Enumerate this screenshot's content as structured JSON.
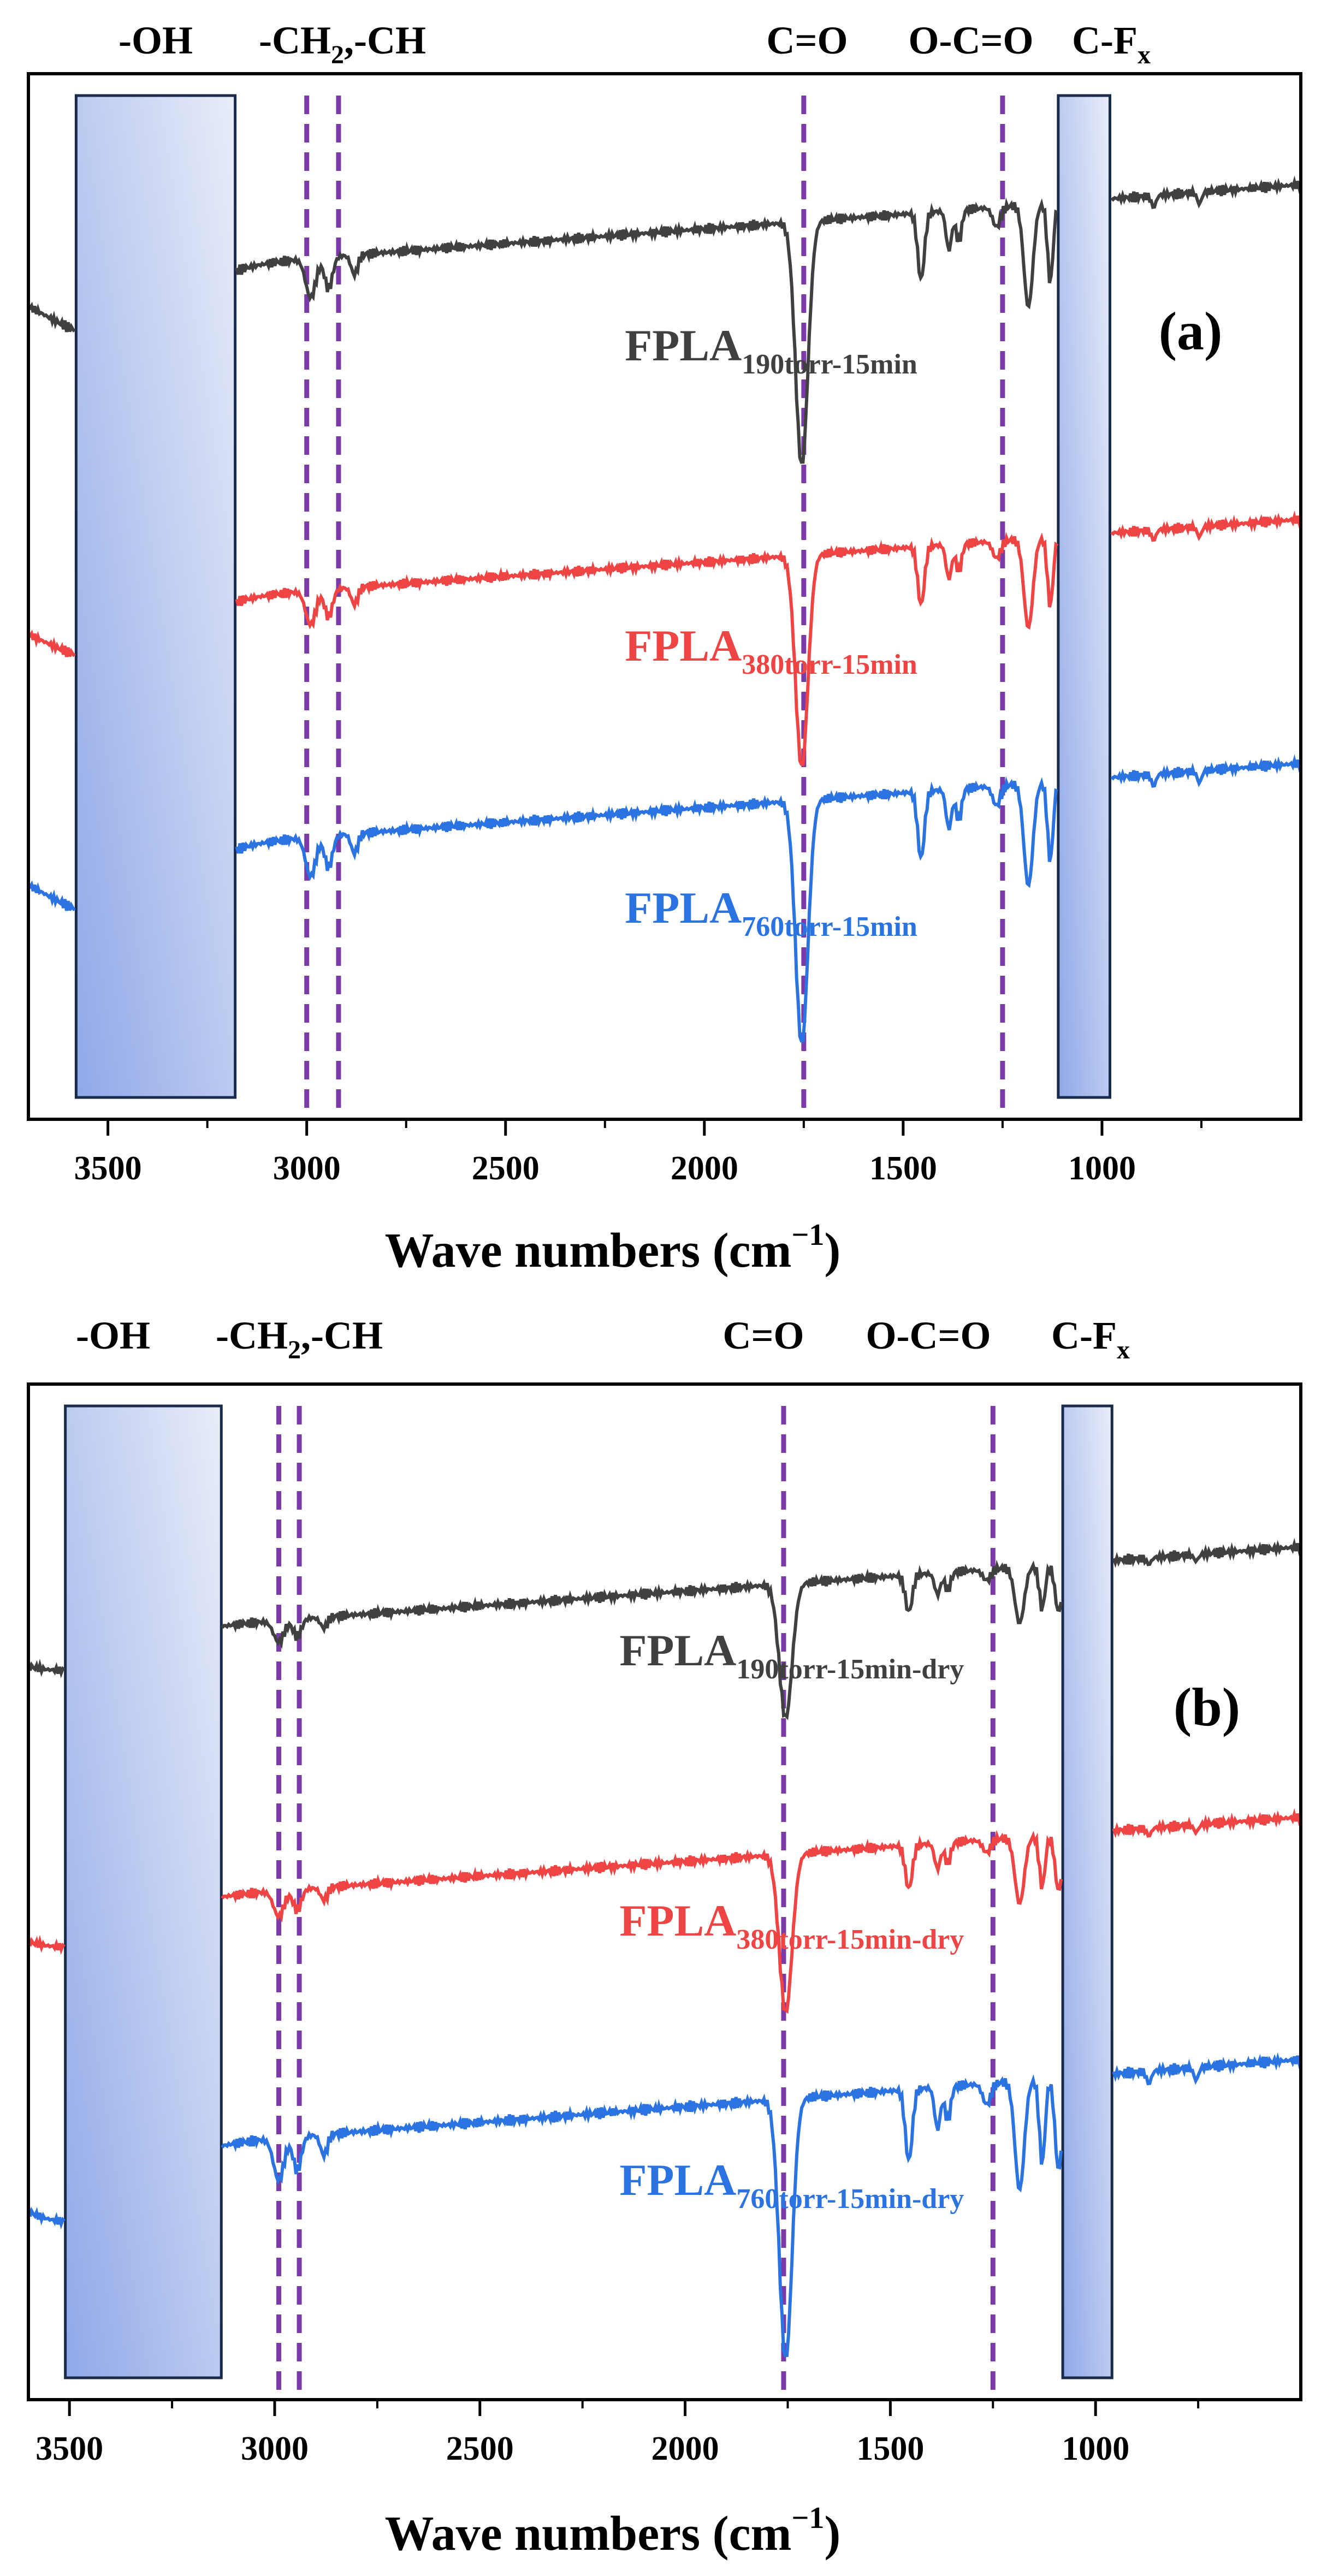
{
  "chart_data": [
    {
      "type": "line",
      "panel_label": "(a)",
      "xlabel": "Wave numbers (cm",
      "xlabel_sup": "−1",
      "xlabel_close": ")",
      "xlim": [
        3700,
        500
      ],
      "x_ticks": [
        3500,
        3000,
        2500,
        2000,
        1500,
        1000
      ],
      "band_annotations": [
        {
          "text": "-OH",
          "sub": "",
          "suffix": "",
          "x": 3370
        },
        {
          "text": "-CH",
          "sub": "2",
          "suffix": ",-CH",
          "x": 2970
        },
        {
          "text": "C=O",
          "sub": "",
          "suffix": "",
          "x": 1760
        },
        {
          "text": "O-C=O",
          "sub": "",
          "suffix": "",
          "x": 1240
        },
        {
          "text": "C-F",
          "sub": "x",
          "suffix": "",
          "x": 1040
        }
      ],
      "shaded_regions": [
        [
          3580,
          3180
        ],
        [
          1110,
          980
        ]
      ],
      "dashed_lines": [
        3000,
        2920,
        1750,
        1250
      ],
      "series": [
        {
          "name": "FPLA",
          "subscript": "190torr-15min",
          "color": "#404040",
          "offset": 0.0,
          "stretch": 1.0,
          "label_x": 2200
        },
        {
          "name": "FPLA",
          "subscript": "380torr-15min",
          "color": "#ef4444",
          "offset": 0.55,
          "stretch": 0.9,
          "label_x": 2200
        },
        {
          "name": "FPLA",
          "subscript": "760torr-15min",
          "color": "#2a73e0",
          "offset": 1.05,
          "stretch": 1.0,
          "label_x": 2200
        }
      ]
    },
    {
      "type": "line",
      "panel_label": "(b)",
      "xlabel": "Wave numbers (cm",
      "xlabel_sup": "−1",
      "xlabel_close": ")",
      "xlim": [
        3600,
        500
      ],
      "x_ticks": [
        3500,
        3000,
        2500,
        2000,
        1500,
        1000
      ],
      "band_annotations": [
        {
          "text": "-OH",
          "sub": "",
          "suffix": "",
          "x": 3380
        },
        {
          "text": "-CH",
          "sub": "2",
          "suffix": ",-CH",
          "x": 2970
        },
        {
          "text": "C=O",
          "sub": "",
          "suffix": "",
          "x": 1760
        },
        {
          "text": "O-C=O",
          "sub": "",
          "suffix": "",
          "x": 1240
        },
        {
          "text": "C-F",
          "sub": "x",
          "suffix": "",
          "x": 1040
        }
      ],
      "shaded_regions": [
        [
          3510,
          3130
        ],
        [
          1080,
          960
        ]
      ],
      "dashed_lines": [
        2990,
        2940,
        1760,
        1250
      ],
      "series": [
        {
          "name": "FPLA",
          "subscript": "190torr-15min-dry",
          "color": "#404040",
          "offset": 0.0,
          "stretch": 0.55,
          "label_x": 2160
        },
        {
          "name": "FPLA",
          "subscript": "380torr-15min-dry",
          "color": "#ef4444",
          "offset": 0.6,
          "stretch": 0.65,
          "label_x": 2160
        },
        {
          "name": "FPLA",
          "subscript": "760torr-15min-dry",
          "color": "#2a73e0",
          "offset": 1.1,
          "stretch": 1.0,
          "label_x": 2160
        }
      ]
    }
  ]
}
